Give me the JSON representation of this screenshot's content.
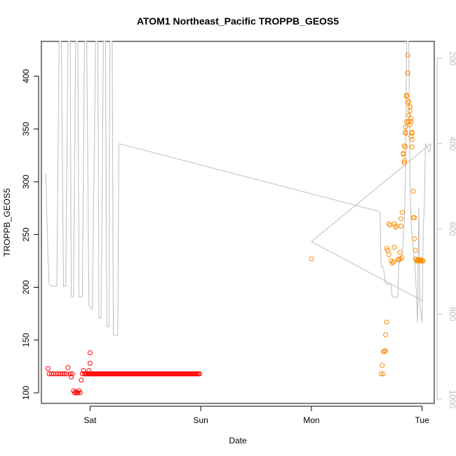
{
  "chart_data": {
    "type": "scatter",
    "title": "ATOM1 Northeast_Pacific TROPPB_GEOS5",
    "xlabel": "Date",
    "ylabel": "TROPPB_GEOS5",
    "x_ticks": [
      "Sat",
      "Sun",
      "Mon",
      "Tue"
    ],
    "x_tick_days": [
      1,
      2,
      3,
      4
    ],
    "xlim_days": [
      0.56,
      4.11
    ],
    "ylim": [
      90,
      433
    ],
    "y_ticks": [
      100,
      150,
      200,
      250,
      300,
      350,
      400
    ],
    "right_axis": {
      "ticks": [
        200,
        400,
        600,
        800,
        1000
      ],
      "lim": [
        1010,
        160
      ],
      "reversed": true,
      "color": "#bebebe"
    },
    "grid": false,
    "series": [
      {
        "color": "#ff0000",
        "marker": "open-circle",
        "points": [
          [
            0.62,
            123
          ],
          [
            0.63,
            118
          ],
          [
            0.65,
            118
          ],
          [
            0.67,
            118
          ],
          [
            0.69,
            118
          ],
          [
            0.71,
            118
          ],
          [
            0.73,
            118
          ],
          [
            0.75,
            118
          ],
          [
            0.77,
            118
          ],
          [
            0.79,
            118
          ],
          [
            0.8,
            124
          ],
          [
            0.82,
            118
          ],
          [
            0.83,
            115
          ],
          [
            0.84,
            118
          ],
          [
            0.85,
            102
          ],
          [
            0.86,
            100
          ],
          [
            0.87,
            101
          ],
          [
            0.88,
            100
          ],
          [
            0.89,
            100
          ],
          [
            0.9,
            102
          ],
          [
            0.91,
            100
          ],
          [
            0.92,
            112
          ],
          [
            0.93,
            118
          ],
          [
            0.94,
            121
          ],
          [
            0.95,
            118
          ],
          [
            0.96,
            118
          ],
          [
            0.97,
            118
          ],
          [
            0.98,
            118
          ],
          [
            0.99,
            118
          ],
          [
            1.0,
            118
          ],
          [
            1.01,
            118
          ],
          [
            1.02,
            118
          ],
          [
            1.03,
            118
          ],
          [
            1.04,
            118
          ],
          [
            1.05,
            118
          ],
          [
            1.06,
            118
          ],
          [
            1.07,
            118
          ],
          [
            1.08,
            118
          ],
          [
            1.09,
            118
          ],
          [
            1.1,
            118
          ],
          [
            1.11,
            118
          ],
          [
            1.12,
            118
          ],
          [
            1.13,
            118
          ],
          [
            1.14,
            118
          ],
          [
            1.15,
            118
          ],
          [
            1.16,
            118
          ],
          [
            1.17,
            118
          ],
          [
            1.18,
            118
          ],
          [
            1.19,
            118
          ],
          [
            1.2,
            118
          ],
          [
            1.21,
            118
          ],
          [
            1.22,
            118
          ],
          [
            1.23,
            118
          ],
          [
            1.24,
            118
          ],
          [
            1.25,
            118
          ],
          [
            1.26,
            118
          ],
          [
            1.27,
            118
          ],
          [
            1.28,
            118
          ],
          [
            1.29,
            118
          ],
          [
            1.3,
            118
          ],
          [
            1.31,
            118
          ],
          [
            1.32,
            118
          ],
          [
            1.33,
            118
          ],
          [
            1.34,
            118
          ],
          [
            1.35,
            118
          ],
          [
            1.36,
            118
          ],
          [
            1.37,
            118
          ],
          [
            1.38,
            118
          ],
          [
            1.39,
            118
          ],
          [
            1.4,
            118
          ],
          [
            1.41,
            118
          ],
          [
            1.42,
            118
          ],
          [
            1.43,
            118
          ],
          [
            1.44,
            118
          ],
          [
            1.45,
            118
          ],
          [
            1.46,
            118
          ],
          [
            1.47,
            118
          ],
          [
            1.48,
            118
          ],
          [
            1.49,
            118
          ],
          [
            1.5,
            118
          ],
          [
            1.51,
            118
          ],
          [
            1.52,
            118
          ],
          [
            1.53,
            118
          ],
          [
            1.54,
            118
          ],
          [
            1.55,
            118
          ],
          [
            1.56,
            118
          ],
          [
            1.57,
            118
          ],
          [
            1.58,
            118
          ],
          [
            1.59,
            118
          ],
          [
            1.6,
            118
          ],
          [
            1.61,
            118
          ],
          [
            1.62,
            118
          ],
          [
            1.63,
            118
          ],
          [
            1.64,
            118
          ],
          [
            1.65,
            118
          ],
          [
            1.66,
            118
          ],
          [
            1.67,
            118
          ],
          [
            1.68,
            118
          ],
          [
            1.69,
            118
          ],
          [
            1.7,
            118
          ],
          [
            1.71,
            118
          ],
          [
            1.72,
            118
          ],
          [
            1.73,
            118
          ],
          [
            1.74,
            118
          ],
          [
            1.75,
            118
          ],
          [
            1.76,
            118
          ],
          [
            1.77,
            118
          ],
          [
            1.78,
            118
          ],
          [
            1.79,
            118
          ],
          [
            1.8,
            118
          ],
          [
            1.81,
            118
          ],
          [
            1.82,
            118
          ],
          [
            1.83,
            118
          ],
          [
            1.84,
            118
          ],
          [
            1.85,
            118
          ],
          [
            1.86,
            118
          ],
          [
            1.87,
            118
          ],
          [
            1.88,
            118
          ],
          [
            1.89,
            118
          ],
          [
            1.9,
            118
          ],
          [
            1.91,
            118
          ],
          [
            1.92,
            118
          ],
          [
            1.93,
            118
          ],
          [
            1.94,
            118
          ],
          [
            1.95,
            118
          ],
          [
            1.96,
            118
          ],
          [
            1.97,
            118
          ],
          [
            1.98,
            118
          ],
          [
            1.99,
            118
          ],
          [
            1.0,
            128
          ],
          [
            1.0,
            138
          ],
          [
            0.99,
            121
          ]
        ]
      },
      {
        "color": "#ff8c00",
        "marker": "open-circle",
        "points": [
          [
            3.0,
            227
          ],
          [
            3.63,
            118
          ],
          [
            3.64,
            126
          ],
          [
            3.65,
            118
          ],
          [
            3.65,
            139
          ],
          [
            3.66,
            139
          ],
          [
            3.67,
            140
          ],
          [
            3.67,
            155
          ],
          [
            3.68,
            167
          ],
          [
            3.68,
            237
          ],
          [
            3.69,
            235
          ],
          [
            3.7,
            231
          ],
          [
            3.7,
            260
          ],
          [
            3.71,
            259
          ],
          [
            3.72,
            225
          ],
          [
            3.73,
            223
          ],
          [
            3.74,
            224
          ],
          [
            3.75,
            238
          ],
          [
            3.75,
            260
          ],
          [
            3.76,
            257
          ],
          [
            3.77,
            258
          ],
          [
            3.78,
            226
          ],
          [
            3.79,
            226
          ],
          [
            3.8,
            227
          ],
          [
            3.8,
            233
          ],
          [
            3.81,
            258
          ],
          [
            3.81,
            265
          ],
          [
            3.82,
            271
          ],
          [
            3.82,
            228
          ],
          [
            3.83,
            327
          ],
          [
            3.84,
            320
          ],
          [
            3.84,
            318
          ],
          [
            3.84,
            334
          ],
          [
            3.85,
            333
          ],
          [
            3.85,
            347
          ],
          [
            3.85,
            352
          ],
          [
            3.86,
            382
          ],
          [
            3.86,
            381
          ],
          [
            3.87,
            403
          ],
          [
            3.87,
            420
          ],
          [
            3.87,
            403
          ],
          [
            3.88,
            363
          ],
          [
            3.88,
            376
          ],
          [
            3.89,
            371
          ],
          [
            3.89,
            371
          ],
          [
            3.89,
            367
          ],
          [
            3.9,
            360
          ],
          [
            3.9,
            357
          ],
          [
            3.9,
            357
          ],
          [
            3.91,
            347
          ],
          [
            3.91,
            346
          ],
          [
            3.91,
            340
          ],
          [
            3.92,
            291
          ],
          [
            3.93,
            266
          ],
          [
            3.93,
            246
          ],
          [
            3.94,
            235
          ],
          [
            3.94,
            227
          ],
          [
            3.95,
            225
          ],
          [
            3.96,
            225
          ],
          [
            3.97,
            226
          ],
          [
            3.98,
            225
          ],
          [
            3.99,
            226
          ],
          [
            4.0,
            225
          ],
          [
            4.01,
            225
          ],
          [
            3.96,
            226
          ],
          [
            3.97,
            225
          ],
          [
            3.98,
            226
          ],
          [
            3.99,
            225
          ],
          [
            3.92,
            266
          ],
          [
            3.9,
            343
          ],
          [
            3.91,
            333
          ],
          [
            3.89,
            354
          ],
          [
            3.88,
            357
          ],
          [
            3.87,
            375
          ],
          [
            3.86,
            357
          ],
          [
            3.85,
            346
          ],
          [
            3.84,
            334
          ],
          [
            3.83,
            326
          ]
        ]
      }
    ],
    "line_series": [
      {
        "color": "#bebebe",
        "axis": "right",
        "points": [
          [
            0.6,
            470
          ],
          [
            0.62,
            670
          ],
          [
            0.63,
            730
          ],
          [
            0.65,
            735
          ],
          [
            0.7,
            735
          ],
          [
            0.72,
            0
          ],
          [
            0.74,
            0
          ],
          [
            0.76,
            735
          ],
          [
            0.78,
            735
          ],
          [
            0.8,
            0
          ],
          [
            0.82,
            0
          ],
          [
            0.83,
            760
          ],
          [
            0.85,
            760
          ],
          [
            0.87,
            0
          ],
          [
            0.89,
            0
          ],
          [
            0.9,
            760
          ],
          [
            0.93,
            760
          ],
          [
            0.95,
            0
          ],
          [
            0.97,
            0
          ],
          [
            0.99,
            780
          ],
          [
            1.02,
            790
          ],
          [
            1.05,
            0
          ],
          [
            1.07,
            0
          ],
          [
            1.08,
            810
          ],
          [
            1.1,
            810
          ],
          [
            1.12,
            0
          ],
          [
            1.14,
            0
          ],
          [
            1.15,
            830
          ],
          [
            1.17,
            830
          ],
          [
            1.18,
            160
          ],
          [
            1.2,
            160
          ],
          [
            1.21,
            850
          ],
          [
            1.25,
            850
          ],
          [
            1.26,
            400
          ],
          [
            3.62,
            560
          ],
          [
            3.63,
            690
          ],
          [
            3.65,
            690
          ],
          [
            3.67,
            730
          ],
          [
            3.72,
            730
          ],
          [
            3.73,
            760
          ],
          [
            3.78,
            760
          ],
          [
            3.79,
            685
          ],
          [
            3.82,
            660
          ],
          [
            3.84,
            580
          ],
          [
            3.85,
            480
          ],
          [
            3.86,
            0
          ],
          [
            3.87,
            0
          ],
          [
            3.88,
            0
          ],
          [
            3.89,
            480
          ],
          [
            3.9,
            580
          ],
          [
            3.91,
            620
          ],
          [
            3.93,
            670
          ],
          [
            3.94,
            700
          ],
          [
            3.96,
            820
          ],
          [
            3.97,
            550
          ],
          [
            3.98,
            780
          ],
          [
            4.0,
            820
          ],
          [
            4.01,
            600
          ],
          [
            4.02,
            550
          ],
          [
            4.03,
            400
          ],
          [
            4.05,
            410
          ],
          [
            4.06,
            420
          ],
          [
            4.07,
            420
          ],
          [
            4.08,
            400
          ],
          [
            3.0,
            630
          ],
          [
            4.01,
            770
          ]
        ]
      }
    ]
  }
}
